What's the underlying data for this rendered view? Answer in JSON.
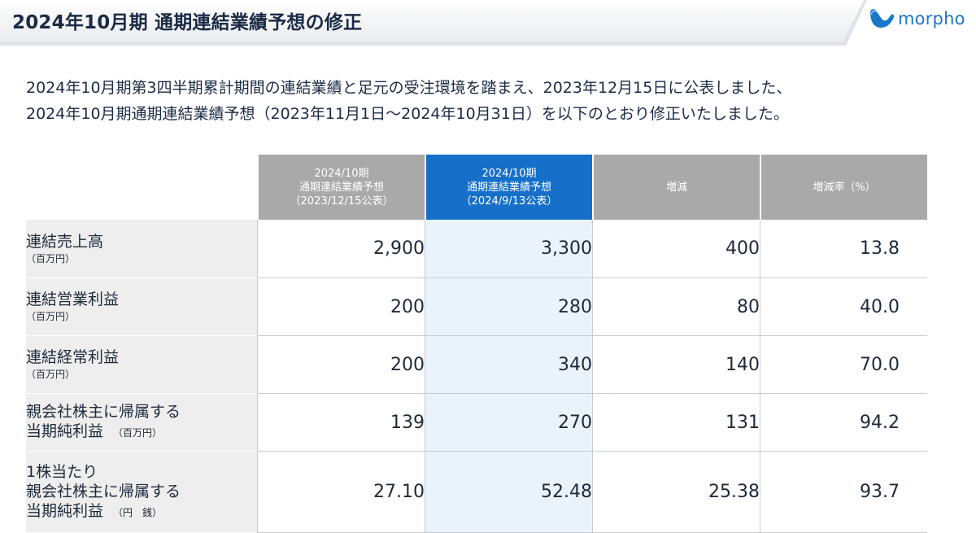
{
  "header": {
    "title": "2024年10月期 通期連結業績予想の修正",
    "logo_text": "morpho"
  },
  "intro": {
    "line1": "2024年10月期第3四半期累計期間の連結業績と足元の受注環境を踏まえ、2023年12月15日に公表しました、",
    "line2": "2024年10月期通期連結業績予想（2023年11月1日～2024年10月31日）を以下のとおり修正いたしました。"
  },
  "colors": {
    "accent": "#1670c9",
    "header_gray": "#a9a9a9",
    "label_bg": "#eeeeee",
    "highlight_bg": "#eaf3fb"
  },
  "table": {
    "columns": [
      {
        "line1": "2024/10期",
        "line2": "通期連結業績予想",
        "line3": "（2023/12/15公表）"
      },
      {
        "line1": "2024/10期",
        "line2": "通期連結業績予想",
        "line3": "（2024/9/13公表）"
      },
      {
        "line1": "増減"
      },
      {
        "line1": "増減率（%）"
      }
    ],
    "rows": [
      {
        "label1": "連結売上高",
        "unit": "（百万円）",
        "values": [
          "2,900",
          "3,300",
          "400",
          "13.8"
        ]
      },
      {
        "label1": "連結営業利益",
        "unit": "（百万円）",
        "values": [
          "200",
          "280",
          "80",
          "40.0"
        ]
      },
      {
        "label1": "連結経常利益",
        "unit": "（百万円）",
        "values": [
          "200",
          "340",
          "140",
          "70.0"
        ]
      },
      {
        "label1": "親会社株主に帰属する",
        "label2": "当期純利益",
        "unit": "（百万円）",
        "values": [
          "139",
          "270",
          "131",
          "94.2"
        ]
      },
      {
        "label1": "1株当たり",
        "label2": "親会社株主に帰属する",
        "label3": "当期純利益",
        "unit": "（円　銭）",
        "values": [
          "27.10",
          "52.48",
          "25.38",
          "93.7"
        ]
      }
    ]
  }
}
